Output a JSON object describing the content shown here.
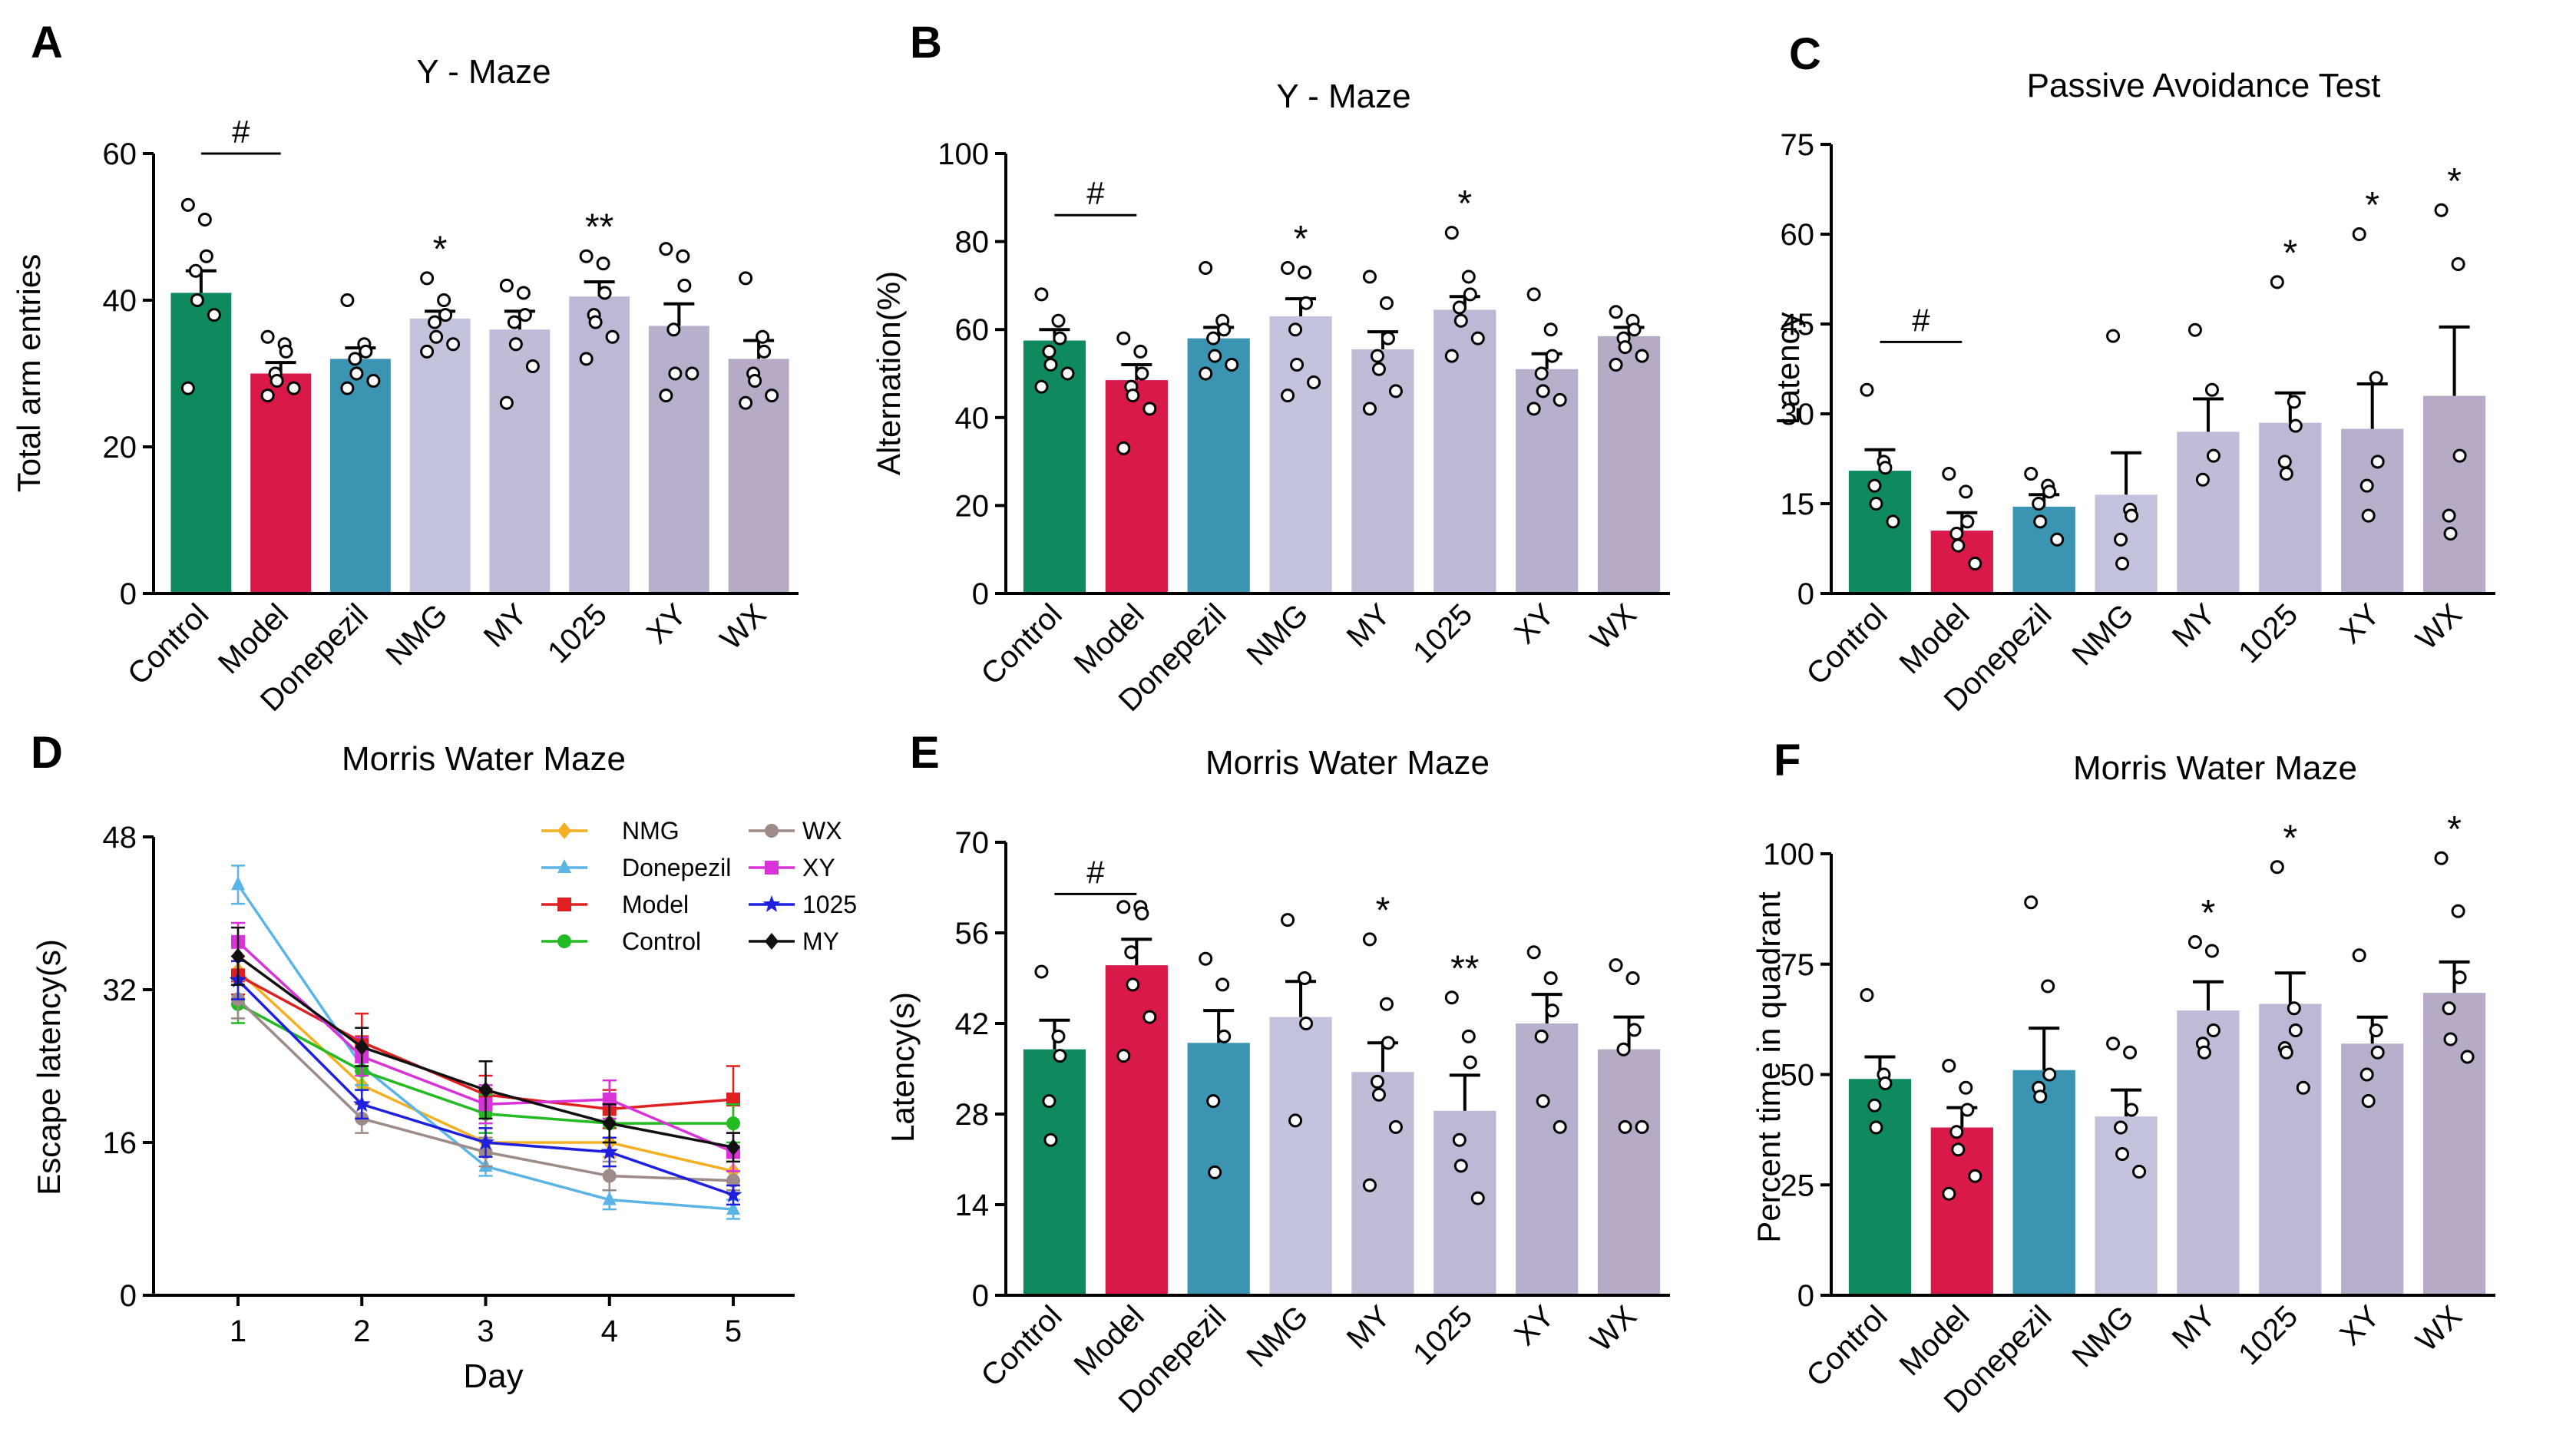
{
  "colors": {
    "Control": "#0f8a5f",
    "Model": "#d8194a",
    "Donepezil": "#3a94b2",
    "NMG": "#c4c3dd",
    "MY": "#c0bcd8",
    "1025": "#bdb8d6",
    "XY": "#b8afcc",
    "WX": "#b6aac6",
    "axis": "#000000",
    "point_fill": "#ffffff"
  },
  "chart_data": [
    {
      "panel": "A",
      "type": "bar",
      "title": "Y - Maze",
      "xlabel": "",
      "ylabel": "Total arm entries",
      "ylim": [
        0,
        60
      ],
      "yticks": [
        0,
        20,
        40,
        60
      ],
      "categories": [
        "Control",
        "Model",
        "Donepezil",
        "NMG",
        "MY",
        "1025",
        "XY",
        "WX"
      ],
      "values": [
        41,
        30,
        32,
        37.5,
        36,
        40.5,
        36.5,
        32
      ],
      "sem": [
        3,
        1.5,
        1.5,
        1,
        2.5,
        2,
        3,
        2.5
      ],
      "points": [
        [
          53,
          51,
          46,
          44,
          40,
          38,
          28
        ],
        [
          35,
          34,
          33,
          30,
          29,
          28,
          27
        ],
        [
          40,
          34,
          33,
          32,
          30,
          29,
          28
        ],
        [
          43,
          40,
          38,
          37,
          35,
          34,
          33
        ],
        [
          42,
          41,
          38,
          37,
          34,
          31,
          26
        ],
        [
          46,
          45,
          41,
          38,
          37,
          35,
          32
        ],
        [
          47,
          46,
          42,
          36,
          30,
          30,
          27
        ],
        [
          43,
          35,
          33,
          30,
          29,
          27,
          26
        ]
      ],
      "annotations": [
        "#",
        "",
        "",
        "*",
        "",
        "**",
        "",
        ""
      ],
      "bracket": {
        "label": "#",
        "from": "Control",
        "to": "Model",
        "y": 60
      }
    },
    {
      "panel": "B",
      "type": "bar",
      "title": "Y - Maze",
      "xlabel": "",
      "ylabel": "Alternation(%)",
      "ylim": [
        0,
        100
      ],
      "yticks": [
        0,
        20,
        40,
        60,
        80,
        100
      ],
      "categories": [
        "Control",
        "Model",
        "Donepezil",
        "NMG",
        "MY",
        "1025",
        "XY",
        "WX"
      ],
      "values": [
        57.5,
        48.5,
        58,
        63,
        55.5,
        64.5,
        51,
        58.5
      ],
      "sem": [
        2.5,
        3.5,
        2.5,
        4,
        4,
        3,
        3.5,
        2
      ],
      "points": [
        [
          68,
          62,
          58,
          55,
          52,
          50,
          47
        ],
        [
          58,
          55,
          50,
          47,
          45,
          42,
          33
        ],
        [
          74,
          62,
          60,
          58,
          54,
          52,
          50
        ],
        [
          74,
          73,
          66,
          60,
          52,
          48,
          45
        ],
        [
          72,
          66,
          58,
          54,
          51,
          46,
          42
        ],
        [
          82,
          72,
          68,
          65,
          62,
          58,
          54
        ],
        [
          68,
          60,
          54,
          50,
          46,
          44,
          42
        ],
        [
          64,
          62,
          60,
          58,
          56,
          54,
          52
        ]
      ],
      "annotations": [
        "",
        "",
        "",
        "*",
        "",
        "*",
        "",
        ""
      ],
      "bracket": {
        "label": "#",
        "from": "Control",
        "to": "Model",
        "y": 86
      }
    },
    {
      "panel": "C",
      "type": "bar",
      "title": "Passive Avoidance Test",
      "xlabel": "",
      "ylabel": "Latency",
      "ylim": [
        0,
        75
      ],
      "yticks": [
        0,
        15,
        30,
        45,
        60,
        75
      ],
      "categories": [
        "Control",
        "Model",
        "Donepezil",
        "NMG",
        "MY",
        "1025",
        "XY",
        "WX"
      ],
      "values": [
        20.5,
        10.5,
        14.5,
        16.5,
        27,
        28.5,
        27.5,
        33
      ],
      "sem": [
        3.5,
        3,
        2,
        7,
        5.5,
        5,
        7.5,
        11.5
      ],
      "points": [
        [
          34,
          22,
          21,
          18,
          15,
          12
        ],
        [
          20,
          17,
          12,
          10,
          8,
          5
        ],
        [
          20,
          18,
          17,
          15,
          12,
          9
        ],
        [
          43,
          14,
          13,
          9,
          5
        ],
        [
          44,
          34,
          23,
          19
        ],
        [
          52,
          32,
          28,
          22,
          20
        ],
        [
          60,
          36,
          22,
          18,
          13
        ],
        [
          64,
          55,
          23,
          13,
          10
        ]
      ],
      "annotations": [
        "",
        "",
        "",
        "",
        "",
        "*",
        "*",
        "*"
      ],
      "bracket": {
        "label": "#",
        "from": "Control",
        "to": "Model",
        "y": 42
      }
    },
    {
      "panel": "D",
      "type": "line",
      "title": "Morris Water Maze",
      "xlabel": "Day",
      "ylabel": "Escape latency(s)",
      "ylim": [
        0,
        48
      ],
      "yticks": [
        0,
        16,
        32,
        48
      ],
      "x": [
        1,
        2,
        3,
        4,
        5
      ],
      "series": [
        {
          "name": "NMG",
          "color": "#f5b022",
          "marker": "diamond",
          "values": [
            34,
            22,
            16,
            16,
            13
          ],
          "err": [
            1.5,
            2,
            1.5,
            1.5,
            1
          ]
        },
        {
          "name": "Donepezil",
          "color": "#5ab5e6",
          "marker": "triangle",
          "values": [
            43,
            24,
            13.5,
            10,
            9
          ],
          "err": [
            2,
            2,
            1,
            1,
            1
          ]
        },
        {
          "name": "Model",
          "color": "#e02020",
          "marker": "square",
          "values": [
            33.5,
            26.5,
            21,
            19.5,
            20.5
          ],
          "err": [
            2,
            3,
            2,
            2,
            3.5
          ]
        },
        {
          "name": "Control",
          "color": "#22bb22",
          "marker": "circle",
          "values": [
            30.5,
            23.5,
            19,
            18,
            18
          ],
          "err": [
            2,
            2,
            2,
            2,
            2
          ]
        },
        {
          "name": "WX",
          "color": "#9e8a86",
          "marker": "circle",
          "values": [
            31,
            18.5,
            15,
            12.5,
            12
          ],
          "err": [
            2,
            1.5,
            1.5,
            1.5,
            1
          ]
        },
        {
          "name": "XY",
          "color": "#d833d8",
          "marker": "square",
          "values": [
            37,
            25,
            20,
            20.5,
            15
          ],
          "err": [
            2,
            2,
            2,
            2,
            2
          ]
        },
        {
          "name": "1025",
          "color": "#1f1fe0",
          "marker": "star",
          "values": [
            33,
            20,
            16,
            15,
            10.5
          ],
          "err": [
            2,
            1.5,
            1.5,
            1.5,
            1
          ]
        },
        {
          "name": "MY",
          "color": "#111111",
          "marker": "diamond",
          "values": [
            35.5,
            26,
            21.5,
            18,
            15.5
          ],
          "err": [
            3,
            2,
            3,
            2,
            1.5
          ]
        }
      ],
      "legend": "top-right"
    },
    {
      "panel": "E",
      "type": "bar",
      "title": "Morris Water Maze",
      "xlabel": "",
      "ylabel": "Latency(s)",
      "ylim": [
        0,
        70
      ],
      "yticks": [
        0,
        14,
        28,
        42,
        56,
        70
      ],
      "categories": [
        "Control",
        "Model",
        "Donepezil",
        "NMG",
        "MY",
        "1025",
        "XY",
        "WX"
      ],
      "values": [
        38,
        51,
        39,
        43,
        34.5,
        28.5,
        42,
        38
      ],
      "sem": [
        4.5,
        4,
        5,
        5.5,
        4.5,
        5.5,
        4.5,
        5
      ],
      "points": [
        [
          50,
          40,
          37,
          30,
          24
        ],
        [
          60,
          60,
          59,
          53,
          48,
          43,
          37
        ],
        [
          52,
          48,
          40,
          30,
          19
        ],
        [
          58,
          49,
          42,
          27
        ],
        [
          55,
          45,
          39,
          33,
          31,
          26,
          17
        ],
        [
          46,
          40,
          36,
          24,
          20,
          15
        ],
        [
          53,
          49,
          44,
          40,
          30,
          26
        ],
        [
          51,
          49,
          41,
          38,
          26,
          26
        ]
      ],
      "annotations": [
        "",
        "",
        "",
        "",
        "*",
        "**",
        "",
        ""
      ],
      "bracket": {
        "label": "#",
        "from": "Control",
        "to": "Model",
        "y": 62
      }
    },
    {
      "panel": "F",
      "type": "bar",
      "title": "Morris Water Maze",
      "xlabel": "",
      "ylabel": "Percent time in quadrant",
      "ylim": [
        0,
        100
      ],
      "yticks": [
        0,
        25,
        50,
        75,
        100
      ],
      "categories": [
        "Control",
        "Model",
        "Donepezil",
        "NMG",
        "MY",
        "1025",
        "XY",
        "WX"
      ],
      "values": [
        49,
        38,
        51,
        40.5,
        64.5,
        66,
        57,
        68.5
      ],
      "sem": [
        5,
        4.5,
        9.5,
        6,
        6.5,
        7,
        6,
        7
      ],
      "points": [
        [
          68,
          50,
          48,
          43,
          38
        ],
        [
          52,
          47,
          42,
          37,
          33,
          27,
          23
        ],
        [
          89,
          70,
          50,
          47,
          45
        ],
        [
          57,
          55,
          42,
          38,
          32,
          28
        ],
        [
          80,
          78,
          60,
          57,
          55
        ],
        [
          97,
          65,
          60,
          56,
          55,
          47
        ],
        [
          77,
          60,
          55,
          50,
          44
        ],
        [
          99,
          87,
          72,
          65,
          58,
          54
        ]
      ],
      "annotations": [
        "",
        "",
        "",
        "",
        "*",
        "*",
        "",
        "*"
      ],
      "bracket": null
    }
  ],
  "panel_labels": [
    "A",
    "B",
    "C",
    "D",
    "E",
    "F"
  ],
  "legend_items": [
    "NMG",
    "Donepezil",
    "Model",
    "Control",
    "WX",
    "XY",
    "1025",
    "MY"
  ]
}
